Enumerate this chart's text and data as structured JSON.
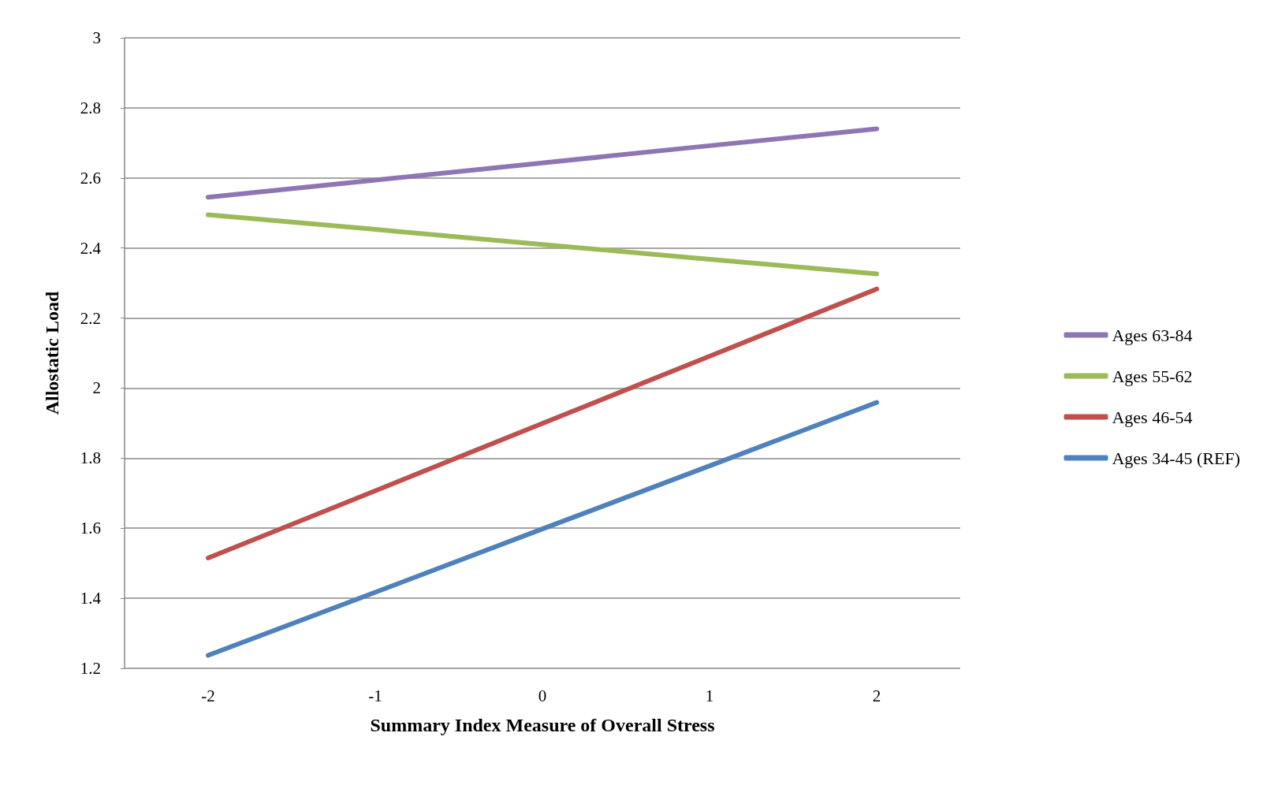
{
  "chart_data": {
    "type": "line",
    "xlabel": "Summary Index Measure of Overall Stress",
    "ylabel": "Allostatic Load",
    "categories": [
      "-2",
      "-1",
      "0",
      "1",
      "2"
    ],
    "ylim": [
      1.2,
      3
    ],
    "yticks": [
      1.2,
      1.4,
      1.6,
      1.8,
      2,
      2.2,
      2.4,
      2.6,
      2.8,
      3
    ],
    "grid": "y",
    "legend": "right",
    "marker": "none",
    "line_style": "solid",
    "series": [
      {
        "name": "Ages 63-84",
        "color": "#8e76b4",
        "values": [
          2.545,
          2.594,
          2.643,
          2.692,
          2.74
        ]
      },
      {
        "name": "Ages 55-62",
        "color": "#9bbb59",
        "values": [
          2.495,
          2.453,
          2.41,
          2.368,
          2.326
        ]
      },
      {
        "name": "Ages 46-54",
        "color": "#c0504d",
        "values": [
          1.515,
          1.707,
          1.899,
          2.091,
          2.283
        ]
      },
      {
        "name": "Ages 34-45 (REF)",
        "color": "#4f81bd",
        "values": [
          1.237,
          1.417,
          1.598,
          1.778,
          1.959
        ]
      }
    ]
  }
}
